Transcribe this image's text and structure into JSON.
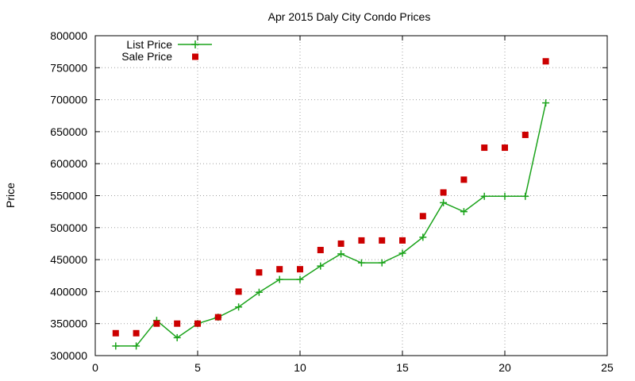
{
  "chart_data": {
    "type": "line",
    "title": "Apr 2015 Daly City Condo Prices",
    "xlabel": "",
    "ylabel": "Price",
    "xlim": [
      0,
      25
    ],
    "ylim": [
      300000,
      800000
    ],
    "x_ticks": [
      0,
      5,
      10,
      15,
      20,
      25
    ],
    "y_ticks": [
      300000,
      350000,
      400000,
      450000,
      500000,
      550000,
      600000,
      650000,
      700000,
      750000,
      800000
    ],
    "grid": true,
    "legend_position": "top-left",
    "series": [
      {
        "name": "List Price",
        "style": "linespoints",
        "marker": "plus",
        "color": "#1aa31a",
        "x": [
          1,
          2,
          3,
          4,
          5,
          6,
          7,
          8,
          9,
          10,
          11,
          12,
          13,
          14,
          15,
          16,
          17,
          18,
          19,
          20,
          21,
          22
        ],
        "y": [
          315000,
          315000,
          355000,
          328000,
          350000,
          360000,
          376000,
          399000,
          419000,
          419000,
          440000,
          459000,
          445000,
          445000,
          460000,
          485000,
          539000,
          525000,
          549000,
          549000,
          549000,
          695000
        ]
      },
      {
        "name": "Sale Price",
        "style": "points",
        "marker": "square",
        "color": "#cc0000",
        "x": [
          1,
          2,
          3,
          4,
          5,
          6,
          7,
          8,
          9,
          10,
          11,
          12,
          13,
          14,
          15,
          16,
          17,
          18,
          19,
          20,
          21,
          22
        ],
        "y": [
          335000,
          335000,
          350000,
          350000,
          350000,
          360000,
          400000,
          430000,
          435000,
          435000,
          465000,
          475000,
          480000,
          480000,
          480000,
          518000,
          555000,
          575000,
          625000,
          625000,
          645000,
          760000
        ]
      }
    ]
  }
}
